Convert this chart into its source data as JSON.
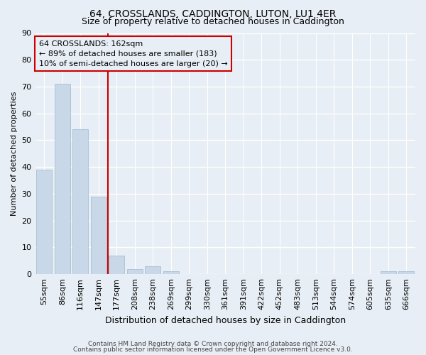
{
  "title": "64, CROSSLANDS, CADDINGTON, LUTON, LU1 4ER",
  "subtitle": "Size of property relative to detached houses in Caddington",
  "xlabel": "Distribution of detached houses by size in Caddington",
  "ylabel": "Number of detached properties",
  "bar_color": "#c8d8e8",
  "bar_edge_color": "#a0b8cc",
  "background_color": "#e8eef5",
  "grid_color": "#ffffff",
  "categories": [
    "55sqm",
    "86sqm",
    "116sqm",
    "147sqm",
    "177sqm",
    "208sqm",
    "238sqm",
    "269sqm",
    "299sqm",
    "330sqm",
    "361sqm",
    "391sqm",
    "422sqm",
    "452sqm",
    "483sqm",
    "513sqm",
    "544sqm",
    "574sqm",
    "605sqm",
    "635sqm",
    "666sqm"
  ],
  "values": [
    39,
    71,
    54,
    29,
    7,
    2,
    3,
    1,
    0,
    0,
    0,
    0,
    0,
    0,
    0,
    0,
    0,
    0,
    0,
    1,
    1
  ],
  "ylim": [
    0,
    90
  ],
  "yticks": [
    0,
    10,
    20,
    30,
    40,
    50,
    60,
    70,
    80,
    90
  ],
  "vline_x_index": 3,
  "vline_color": "#cc0000",
  "annotation_title": "64 CROSSLANDS: 162sqm",
  "annotation_line1": "← 89% of detached houses are smaller (183)",
  "annotation_line2": "10% of semi-detached houses are larger (20) →",
  "footer_line1": "Contains HM Land Registry data © Crown copyright and database right 2024.",
  "footer_line2": "Contains public sector information licensed under the Open Government Licence v3.0.",
  "title_fontsize": 10,
  "subtitle_fontsize": 9,
  "ylabel_fontsize": 8,
  "xlabel_fontsize": 9,
  "tick_fontsize": 8,
  "annotation_fontsize": 8,
  "footer_fontsize": 6.5
}
